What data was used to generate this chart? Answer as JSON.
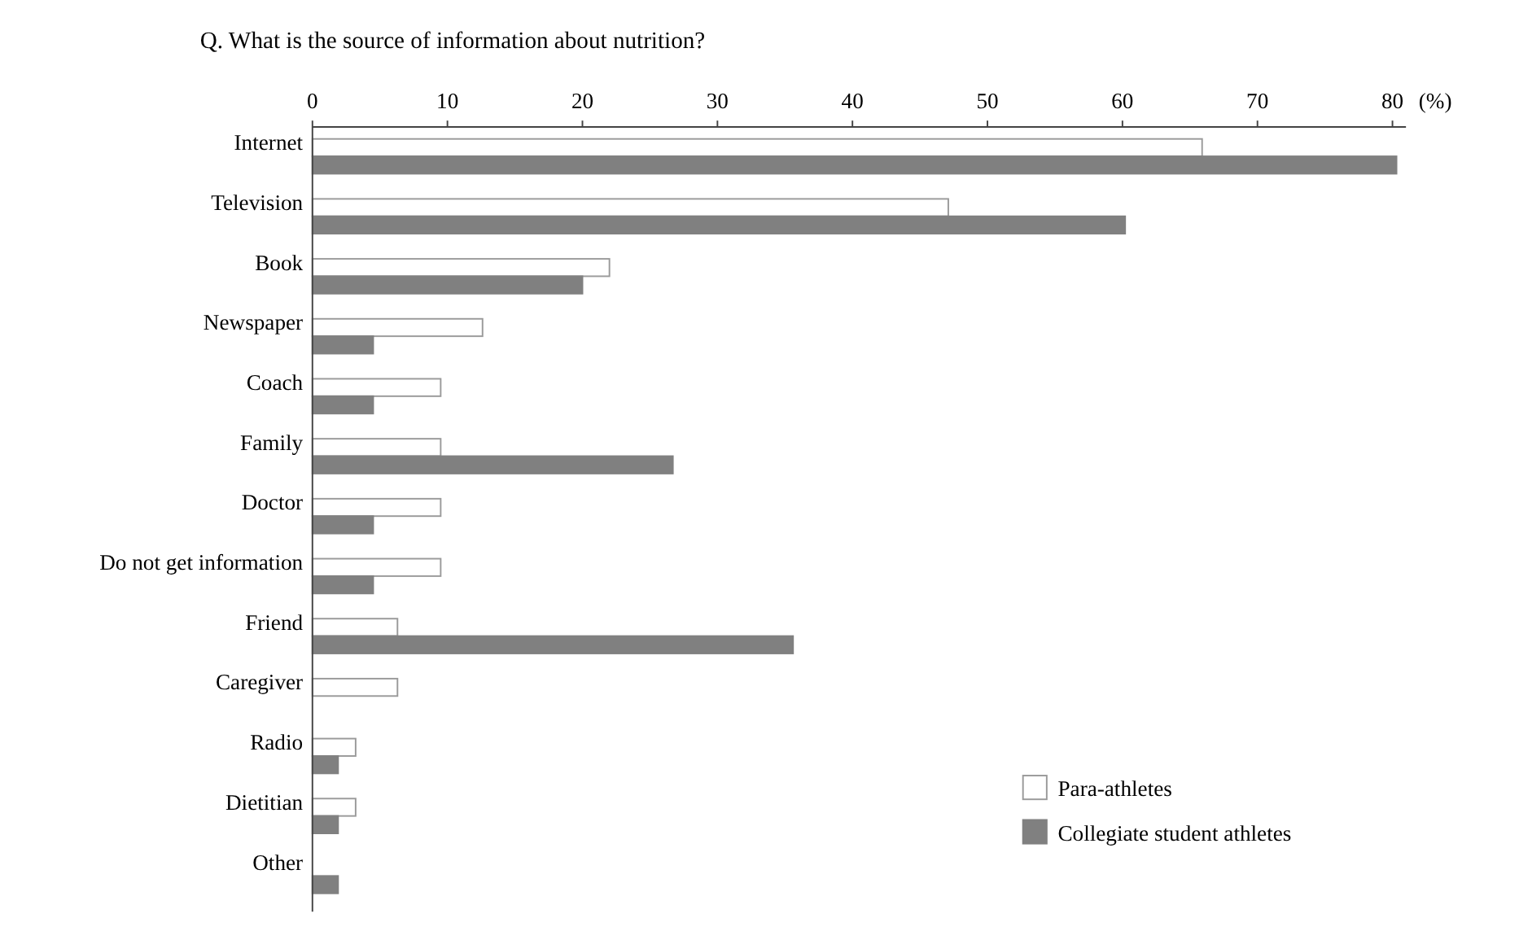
{
  "chart_data": {
    "type": "bar",
    "orientation": "horizontal",
    "title": "Q. What is the source of information about nutrition?",
    "xlabel": "(%)",
    "categories": [
      "Internet",
      "Television",
      "Book",
      "Newspaper",
      "Coach",
      "Family",
      "Doctor",
      "Do not get information",
      "Friend",
      "Caregiver",
      "Radio",
      "Dietitian",
      "Other"
    ],
    "series": [
      {
        "name": "Para-athletes",
        "color": "#ffffff",
        "values": [
          65.9,
          47.1,
          22.0,
          12.6,
          9.5,
          9.5,
          9.5,
          9.5,
          6.3,
          6.3,
          3.2,
          3.2,
          0
        ]
      },
      {
        "name": "Collegiate student athletes",
        "color": "#808080",
        "values": [
          80.3,
          60.2,
          20.0,
          4.5,
          4.5,
          26.7,
          4.5,
          4.5,
          35.6,
          0,
          1.9,
          1.9,
          1.9
        ]
      }
    ],
    "xlim": [
      0,
      81
    ],
    "xticks": [
      0,
      10,
      20,
      30,
      40,
      50,
      60,
      70,
      80
    ],
    "grid": false,
    "legend": "bottom right"
  }
}
